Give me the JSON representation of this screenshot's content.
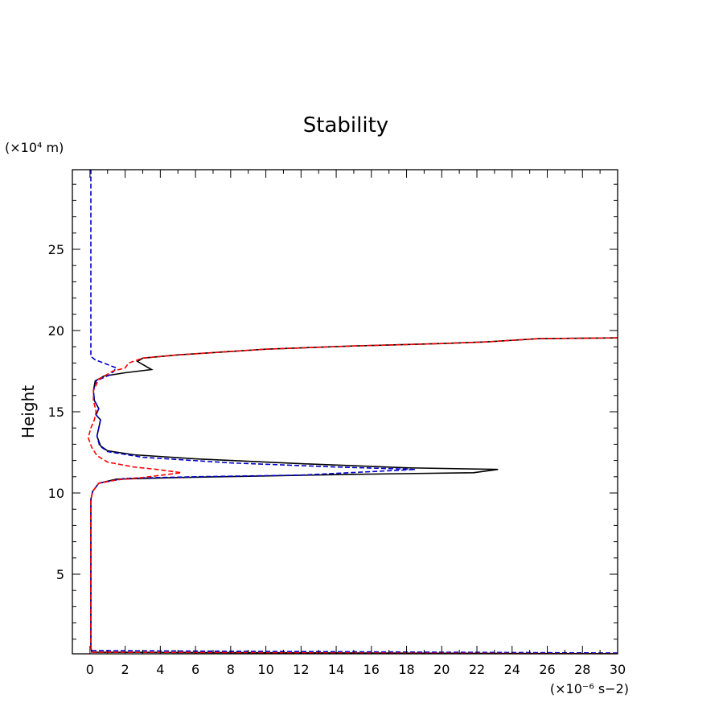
{
  "chart_data": {
    "type": "line",
    "title": "Stability",
    "xlabel": "(×10⁻⁶ s−2)",
    "ylabel": "Height",
    "y_unit_label": "(×10⁴ m)",
    "xlim": [
      -1,
      30
    ],
    "ylim": [
      0.1,
      29.9
    ],
    "x_ticks": [
      0,
      2,
      4,
      6,
      8,
      10,
      12,
      14,
      16,
      18,
      20,
      22,
      24,
      26,
      28,
      30
    ],
    "x_tick_labels": [
      "0",
      "2",
      "4",
      "6",
      "8",
      "10",
      "12",
      "14",
      "16",
      "18",
      "20",
      "22",
      "24",
      "26",
      "28",
      "30"
    ],
    "y_ticks": [
      5,
      10,
      15,
      20,
      25
    ],
    "y_tick_labels": [
      "5",
      "10",
      "15",
      "20",
      "25"
    ],
    "grid": false,
    "legend": "none",
    "series": [
      {
        "color": "#000000",
        "style": "solid",
        "points": [
          [
            30,
            0.1
          ],
          [
            0.1,
            0.2
          ],
          [
            0.05,
            0.5
          ],
          [
            0.05,
            5
          ],
          [
            0.05,
            9.6
          ],
          [
            0.15,
            10.1
          ],
          [
            0.5,
            10.6
          ],
          [
            1.5,
            10.85
          ],
          [
            5,
            10.95
          ],
          [
            10,
            11.05
          ],
          [
            15,
            11.15
          ],
          [
            21.8,
            11.25
          ],
          [
            23.2,
            11.45
          ],
          [
            18,
            11.55
          ],
          [
            12,
            11.8
          ],
          [
            6,
            12.1
          ],
          [
            2.5,
            12.35
          ],
          [
            1,
            12.6
          ],
          [
            0.6,
            12.9
          ],
          [
            0.4,
            13.5
          ],
          [
            0.5,
            14.0
          ],
          [
            0.6,
            14.5
          ],
          [
            0.35,
            14.8
          ],
          [
            0.5,
            15.2
          ],
          [
            0.25,
            15.7
          ],
          [
            0.2,
            16.3
          ],
          [
            0.3,
            16.9
          ],
          [
            0.8,
            17.2
          ],
          [
            2.0,
            17.4
          ],
          [
            3.5,
            17.6
          ],
          [
            2.7,
            18.1
          ],
          [
            3,
            18.3
          ],
          [
            5,
            18.5
          ],
          [
            10,
            18.85
          ],
          [
            15,
            19.05
          ],
          [
            20,
            19.2
          ],
          [
            22.6,
            19.3
          ],
          [
            25.5,
            19.5
          ],
          [
            30,
            19.55
          ]
        ]
      },
      {
        "color": "#0000cc",
        "style": "dashed",
        "points": [
          [
            30,
            0.15
          ],
          [
            0.1,
            0.3
          ],
          [
            0.05,
            0.5
          ],
          [
            0.05,
            5
          ],
          [
            0.05,
            9.6
          ],
          [
            0.15,
            10.1
          ],
          [
            0.5,
            10.6
          ],
          [
            2,
            10.9
          ],
          [
            6,
            11.0
          ],
          [
            12,
            11.1
          ],
          [
            18.5,
            11.45
          ],
          [
            14,
            11.6
          ],
          [
            8,
            11.85
          ],
          [
            3,
            12.2
          ],
          [
            1,
            12.55
          ],
          [
            0.55,
            12.9
          ],
          [
            0.4,
            13.5
          ],
          [
            0.5,
            14.0
          ],
          [
            0.6,
            14.5
          ],
          [
            0.35,
            14.8
          ],
          [
            0.5,
            15.2
          ],
          [
            0.25,
            15.7
          ],
          [
            0.2,
            16.3
          ],
          [
            0.35,
            16.9
          ],
          [
            1.2,
            17.3
          ],
          [
            1.5,
            17.7
          ],
          [
            0.3,
            18.2
          ],
          [
            0.05,
            18.4
          ],
          [
            0.05,
            22
          ],
          [
            0.05,
            29.9
          ]
        ]
      },
      {
        "color": "#ff0000",
        "style": "dashed",
        "points": [
          [
            30,
            0.1
          ],
          [
            0.1,
            0.2
          ],
          [
            0.05,
            0.5
          ],
          [
            0.05,
            5
          ],
          [
            0.05,
            9.6
          ],
          [
            0.15,
            10.1
          ],
          [
            0.5,
            10.6
          ],
          [
            1.5,
            10.8
          ],
          [
            3,
            10.95
          ],
          [
            5.2,
            11.25
          ],
          [
            3.8,
            11.45
          ],
          [
            2.5,
            11.6
          ],
          [
            1.0,
            11.9
          ],
          [
            0.4,
            12.3
          ],
          [
            0.1,
            12.8
          ],
          [
            -0.1,
            13.4
          ],
          [
            0.05,
            14.0
          ],
          [
            0.25,
            14.5
          ],
          [
            0.35,
            15.0
          ],
          [
            0.2,
            15.7
          ],
          [
            0.2,
            16.3
          ],
          [
            0.5,
            17.0
          ],
          [
            1.3,
            17.5
          ],
          [
            2.0,
            17.7
          ],
          [
            2.2,
            18.0
          ],
          [
            3,
            18.3
          ],
          [
            5,
            18.5
          ],
          [
            10,
            18.85
          ],
          [
            15,
            19.05
          ],
          [
            20,
            19.2
          ],
          [
            22.6,
            19.3
          ],
          [
            25.5,
            19.5
          ],
          [
            30,
            19.55
          ]
        ]
      }
    ]
  }
}
